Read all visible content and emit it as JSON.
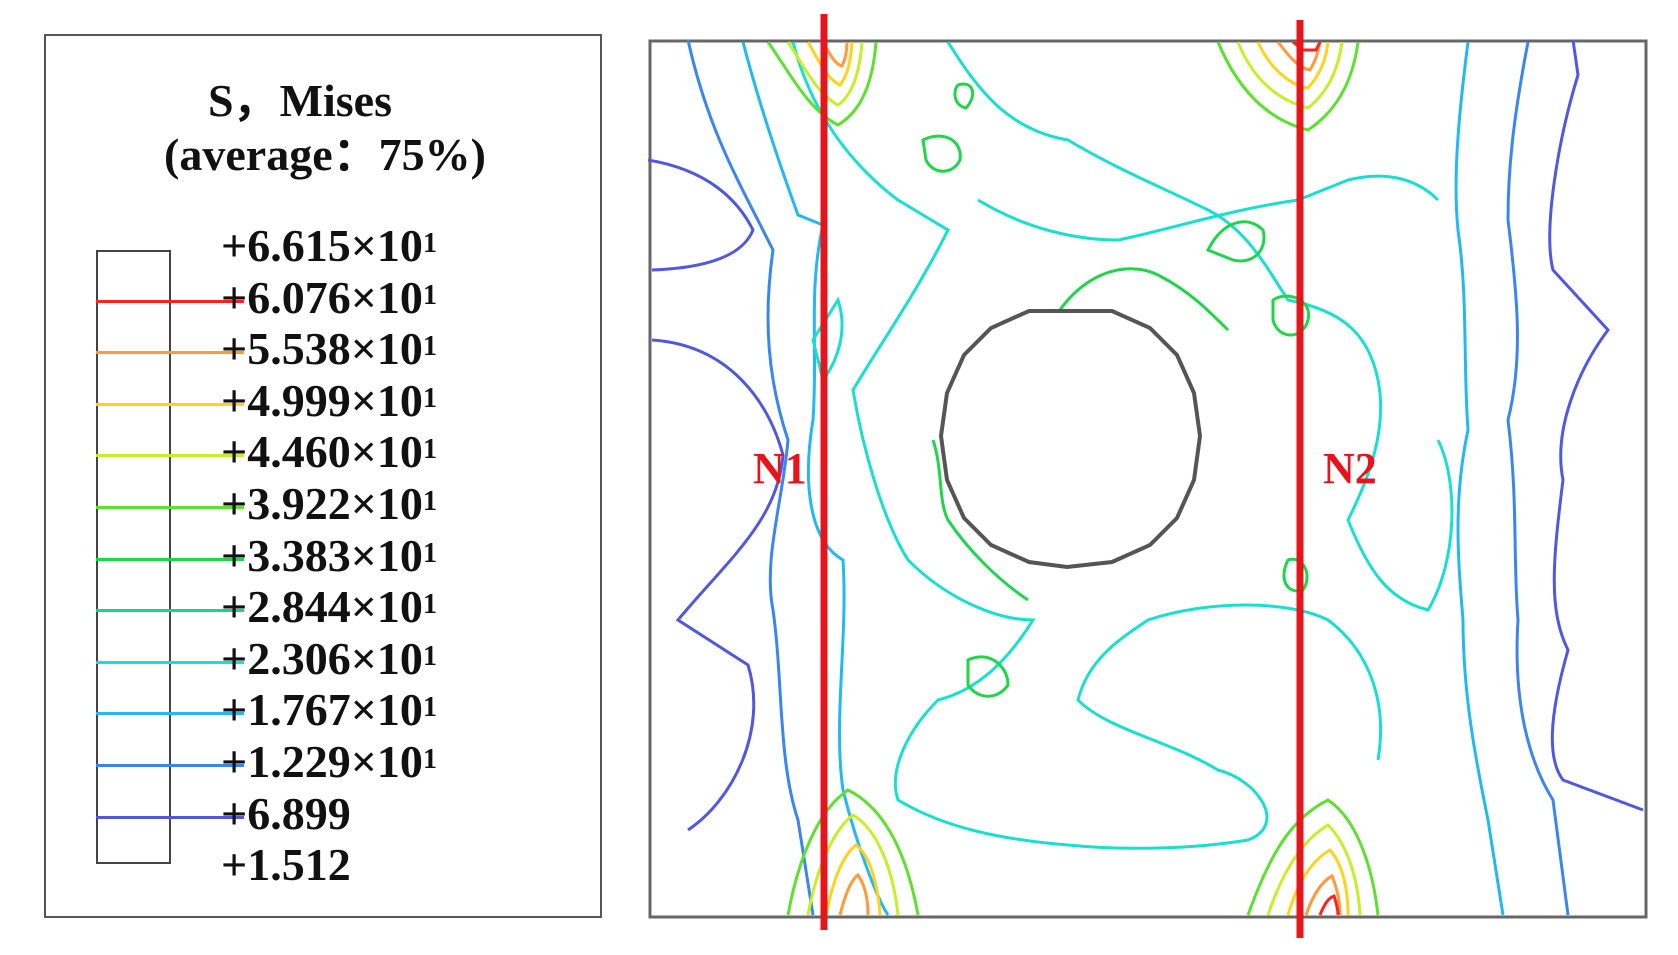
{
  "legend": {
    "title_line1": "S，Mises",
    "title_line2": "(average：75%)",
    "levels": [
      {
        "mant": "+6.615",
        "exp": "×10",
        "pow": "1",
        "color": ""
      },
      {
        "mant": "+6.076",
        "exp": "×10",
        "pow": "1",
        "color": "#ff2020"
      },
      {
        "mant": "+5.538",
        "exp": "×10",
        "pow": "1",
        "color": "#ff9a3c"
      },
      {
        "mant": "+4.999",
        "exp": "×10",
        "pow": "1",
        "color": "#ffd21e"
      },
      {
        "mant": "+4.460",
        "exp": "×10",
        "pow": "1",
        "color": "#c6ef2a"
      },
      {
        "mant": "+3.922",
        "exp": "×10",
        "pow": "1",
        "color": "#5ee02e"
      },
      {
        "mant": "+3.383",
        "exp": "×10",
        "pow": "1",
        "color": "#1fd64a"
      },
      {
        "mant": "+2.844",
        "exp": "×10",
        "pow": "1",
        "color": "#16d68a"
      },
      {
        "mant": "+2.306",
        "exp": "×10",
        "pow": "1",
        "color": "#19dfd0"
      },
      {
        "mant": "+1.767",
        "exp": "×10",
        "pow": "1",
        "color": "#22b8f2"
      },
      {
        "mant": "+1.229",
        "exp": "×10",
        "pow": "1",
        "color": "#3a86ee"
      },
      {
        "mant": "+6.899",
        "exp": "",
        "pow": "",
        "color": "#5058e0"
      },
      {
        "mant": "+1.512",
        "exp": "",
        "pow": "",
        "color": ""
      }
    ]
  },
  "plot": {
    "label_n1": "N1",
    "label_n2": "N2",
    "section_line_color": "#e8141b"
  }
}
